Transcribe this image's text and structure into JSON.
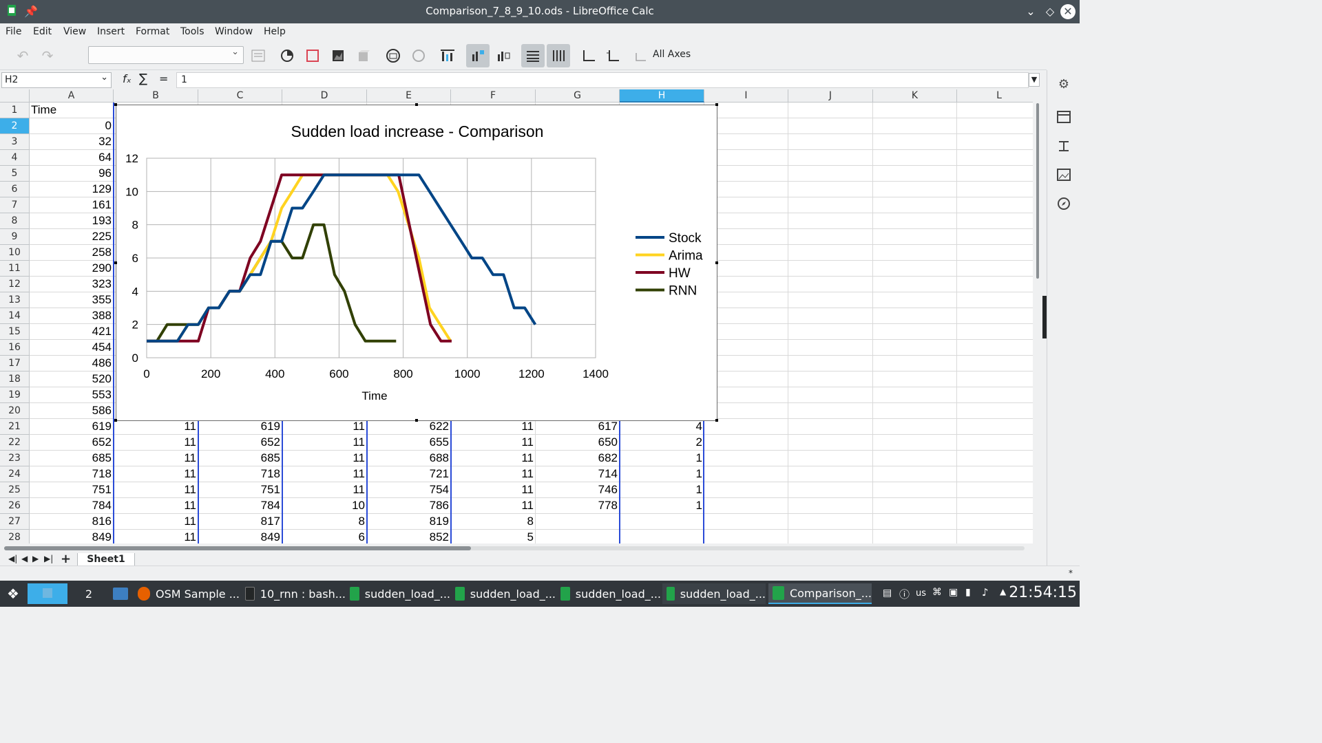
{
  "window": {
    "title": "Comparison_7_8_9_10.ods - LibreOffice Calc"
  },
  "menu": [
    "File",
    "Edit",
    "View",
    "Insert",
    "Format",
    "Tools",
    "Window",
    "Help"
  ],
  "toolbar": {
    "axes_label": "All Axes"
  },
  "formula": {
    "cell_ref": "H2",
    "fx": "fₓ",
    "sum": "∑",
    "eq": "=",
    "value": "1"
  },
  "columns": [
    "A",
    "B",
    "C",
    "D",
    "E",
    "F",
    "G",
    "H",
    "I",
    "J",
    "K",
    "L"
  ],
  "rows": [
    {
      "n": "1",
      "cells": [
        "Time",
        "",
        "",
        "",
        "",
        "",
        "",
        ""
      ]
    },
    {
      "n": "2",
      "cells": [
        "0",
        "",
        "",
        "",
        "",
        "",
        "",
        ""
      ]
    },
    {
      "n": "3",
      "cells": [
        "32",
        "",
        "",
        "",
        "",
        "",
        "",
        ""
      ]
    },
    {
      "n": "4",
      "cells": [
        "64",
        "",
        "",
        "",
        "",
        "",
        "",
        ""
      ]
    },
    {
      "n": "5",
      "cells": [
        "96",
        "",
        "",
        "",
        "",
        "",
        "",
        ""
      ]
    },
    {
      "n": "6",
      "cells": [
        "129",
        "",
        "",
        "",
        "",
        "",
        "",
        ""
      ]
    },
    {
      "n": "7",
      "cells": [
        "161",
        "",
        "",
        "",
        "",
        "",
        "",
        ""
      ]
    },
    {
      "n": "8",
      "cells": [
        "193",
        "",
        "",
        "",
        "",
        "",
        "",
        ""
      ]
    },
    {
      "n": "9",
      "cells": [
        "225",
        "",
        "",
        "",
        "",
        "",
        "",
        ""
      ]
    },
    {
      "n": "10",
      "cells": [
        "258",
        "",
        "",
        "",
        "",
        "",
        "",
        ""
      ]
    },
    {
      "n": "11",
      "cells": [
        "290",
        "",
        "",
        "",
        "",
        "",
        "",
        ""
      ]
    },
    {
      "n": "12",
      "cells": [
        "323",
        "",
        "",
        "",
        "",
        "",
        "",
        ""
      ]
    },
    {
      "n": "13",
      "cells": [
        "355",
        "",
        "",
        "",
        "",
        "",
        "",
        ""
      ]
    },
    {
      "n": "14",
      "cells": [
        "388",
        "",
        "",
        "",
        "",
        "",
        "",
        ""
      ]
    },
    {
      "n": "15",
      "cells": [
        "421",
        "",
        "",
        "",
        "",
        "",
        "",
        ""
      ]
    },
    {
      "n": "16",
      "cells": [
        "454",
        "",
        "",
        "",
        "",
        "",
        "",
        ""
      ]
    },
    {
      "n": "17",
      "cells": [
        "486",
        "",
        "",
        "",
        "",
        "",
        "",
        ""
      ]
    },
    {
      "n": "18",
      "cells": [
        "520",
        "",
        "",
        "",
        "",
        "",
        "",
        ""
      ]
    },
    {
      "n": "19",
      "cells": [
        "553",
        "",
        "",
        "",
        "",
        "",
        "",
        ""
      ]
    },
    {
      "n": "20",
      "cells": [
        "586",
        "",
        "",
        "",
        "",
        "",
        "",
        ""
      ]
    },
    {
      "n": "21",
      "cells": [
        "619",
        "11",
        "619",
        "11",
        "622",
        "11",
        "617",
        "4"
      ]
    },
    {
      "n": "22",
      "cells": [
        "652",
        "11",
        "652",
        "11",
        "655",
        "11",
        "650",
        "2"
      ]
    },
    {
      "n": "23",
      "cells": [
        "685",
        "11",
        "685",
        "11",
        "688",
        "11",
        "682",
        "1"
      ]
    },
    {
      "n": "24",
      "cells": [
        "718",
        "11",
        "718",
        "11",
        "721",
        "11",
        "714",
        "1"
      ]
    },
    {
      "n": "25",
      "cells": [
        "751",
        "11",
        "751",
        "11",
        "754",
        "11",
        "746",
        "1"
      ]
    },
    {
      "n": "26",
      "cells": [
        "784",
        "11",
        "784",
        "10",
        "786",
        "11",
        "778",
        "1"
      ]
    },
    {
      "n": "27",
      "cells": [
        "816",
        "11",
        "817",
        "8",
        "819",
        "8",
        "",
        ""
      ]
    },
    {
      "n": "28",
      "cells": [
        "849",
        "11",
        "849",
        "6",
        "852",
        "5",
        "",
        ""
      ]
    }
  ],
  "sheet_tab": "Sheet1",
  "chart_data": {
    "type": "line",
    "title": "Sudden load increase - Comparison",
    "xlabel": "Time",
    "ylabel": "",
    "xlim": [
      0,
      1400
    ],
    "ylim": [
      0,
      12
    ],
    "xticks": [
      "0",
      "200",
      "400",
      "600",
      "800",
      "1000",
      "1200",
      "1400"
    ],
    "yticks": [
      "0",
      "2",
      "4",
      "6",
      "8",
      "10",
      "12"
    ],
    "grid": true,
    "legend": "right",
    "series": [
      {
        "name": "Stock",
        "color": "#004586",
        "points": [
          [
            0,
            1
          ],
          [
            96,
            1
          ],
          [
            129,
            2
          ],
          [
            161,
            2
          ],
          [
            193,
            3
          ],
          [
            225,
            3
          ],
          [
            258,
            4
          ],
          [
            290,
            4
          ],
          [
            323,
            5
          ],
          [
            355,
            5
          ],
          [
            388,
            7
          ],
          [
            421,
            7
          ],
          [
            454,
            9
          ],
          [
            486,
            9
          ],
          [
            520,
            10
          ],
          [
            553,
            11
          ],
          [
            586,
            11
          ],
          [
            619,
            11
          ],
          [
            652,
            11
          ],
          [
            685,
            11
          ],
          [
            718,
            11
          ],
          [
            751,
            11
          ],
          [
            784,
            11
          ],
          [
            816,
            11
          ],
          [
            849,
            11
          ],
          [
            882,
            10
          ],
          [
            915,
            9
          ],
          [
            948,
            8
          ],
          [
            981,
            7
          ],
          [
            1014,
            6
          ],
          [
            1047,
            6
          ],
          [
            1080,
            5
          ],
          [
            1113,
            5
          ],
          [
            1146,
            3
          ],
          [
            1179,
            3
          ],
          [
            1212,
            2
          ]
        ]
      },
      {
        "name": "Arima",
        "color": "#ffd320",
        "points": [
          [
            0,
            1
          ],
          [
            32,
            1
          ],
          [
            64,
            1
          ],
          [
            96,
            1
          ],
          [
            129,
            2
          ],
          [
            161,
            2
          ],
          [
            193,
            3
          ],
          [
            225,
            3
          ],
          [
            258,
            4
          ],
          [
            290,
            4
          ],
          [
            323,
            5
          ],
          [
            355,
            6
          ],
          [
            388,
            7
          ],
          [
            421,
            9
          ],
          [
            454,
            10
          ],
          [
            486,
            11
          ],
          [
            520,
            11
          ],
          [
            553,
            11
          ],
          [
            586,
            11
          ],
          [
            619,
            11
          ],
          [
            652,
            11
          ],
          [
            685,
            11
          ],
          [
            718,
            11
          ],
          [
            751,
            11
          ],
          [
            784,
            10
          ],
          [
            817,
            8
          ],
          [
            849,
            6
          ],
          [
            882,
            3
          ],
          [
            915,
            2
          ],
          [
            948,
            1
          ]
        ]
      },
      {
        "name": "HW",
        "color": "#7e0021",
        "points": [
          [
            0,
            1
          ],
          [
            32,
            1
          ],
          [
            64,
            1
          ],
          [
            96,
            1
          ],
          [
            129,
            1
          ],
          [
            161,
            1
          ],
          [
            193,
            3
          ],
          [
            225,
            3
          ],
          [
            258,
            4
          ],
          [
            290,
            4
          ],
          [
            323,
            6
          ],
          [
            355,
            7
          ],
          [
            388,
            9
          ],
          [
            421,
            11
          ],
          [
            454,
            11
          ],
          [
            486,
            11
          ],
          [
            520,
            11
          ],
          [
            553,
            11
          ],
          [
            586,
            11
          ],
          [
            622,
            11
          ],
          [
            655,
            11
          ],
          [
            688,
            11
          ],
          [
            721,
            11
          ],
          [
            754,
            11
          ],
          [
            786,
            11
          ],
          [
            819,
            8
          ],
          [
            852,
            5
          ],
          [
            885,
            2
          ],
          [
            918,
            1
          ],
          [
            951,
            1
          ]
        ]
      },
      {
        "name": "RNN",
        "color": "#314004",
        "points": [
          [
            0,
            1
          ],
          [
            32,
            1
          ],
          [
            64,
            2
          ],
          [
            96,
            2
          ],
          [
            129,
            2
          ],
          [
            161,
            2
          ],
          [
            193,
            3
          ],
          [
            225,
            3
          ],
          [
            258,
            4
          ],
          [
            290,
            4
          ],
          [
            323,
            5
          ],
          [
            355,
            6
          ],
          [
            388,
            7
          ],
          [
            421,
            7
          ],
          [
            454,
            6
          ],
          [
            486,
            6
          ],
          [
            520,
            8
          ],
          [
            553,
            8
          ],
          [
            586,
            5
          ],
          [
            617,
            4
          ],
          [
            650,
            2
          ],
          [
            682,
            1
          ],
          [
            714,
            1
          ],
          [
            746,
            1
          ],
          [
            778,
            1
          ]
        ]
      }
    ]
  },
  "taskbar": {
    "desktop": "2",
    "tasks": [
      "OSM Sample ...",
      "10_rnn : bash...",
      "sudden_load_...",
      "sudden_load_...",
      "sudden_load_...",
      "sudden_load_...",
      "Comparison_..."
    ],
    "layout": "us",
    "clock": "21:54:15"
  }
}
